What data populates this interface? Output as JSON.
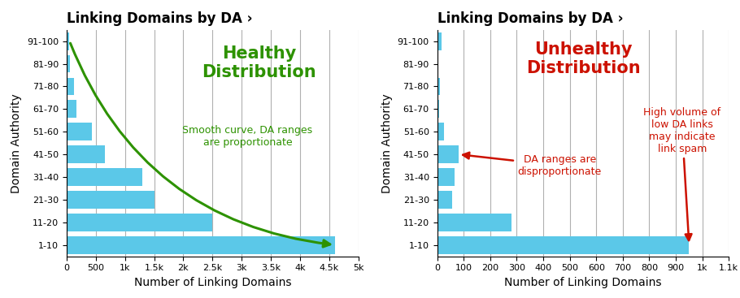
{
  "chart_data": [
    {
      "type": "bar",
      "orientation": "horizontal",
      "title": "Linking Domains by DA ›",
      "xlabel": "Number of Linking Domains",
      "ylabel": "Domain Authority",
      "categories": [
        "1-10",
        "11-20",
        "21-30",
        "31-40",
        "41-50",
        "51-60",
        "61-70",
        "71-80",
        "81-90",
        "91-100"
      ],
      "values": [
        4600,
        2500,
        1500,
        1300,
        650,
        430,
        170,
        120,
        60,
        50
      ],
      "color": "#5bc8e8",
      "xlim": [
        0,
        5000
      ],
      "xticks": [
        0,
        500,
        {
          "value": 1000,
          "label": "1k"
        },
        {
          "value": 1500,
          "label": "1.5k"
        },
        {
          "value": 2000,
          "label": "2k"
        },
        {
          "value": 2500,
          "label": "2.5k"
        },
        {
          "value": 3000,
          "label": "3k"
        },
        {
          "value": 3500,
          "label": "3.5k"
        },
        {
          "value": 4000,
          "label": "4k"
        },
        {
          "value": 4500,
          "label": "4.5k"
        },
        {
          "value": 5000,
          "label": "5k"
        }
      ],
      "grid": true,
      "annotations": [
        {
          "text": "Healthy\nDistribution",
          "color": "#2d9200"
        },
        {
          "text": "Smooth curve, DA ranges\nare proportionate",
          "color": "#2d9200"
        }
      ]
    },
    {
      "type": "bar",
      "orientation": "horizontal",
      "title": "Linking Domains by DA ›",
      "xlabel": "Number of Linking Domains",
      "ylabel": "Domain Authority",
      "categories": [
        "1-10",
        "11-20",
        "21-30",
        "31-40",
        "41-50",
        "51-60",
        "61-70",
        "71-80",
        "81-90",
        "91-100"
      ],
      "values": [
        950,
        280,
        55,
        65,
        80,
        25,
        8,
        12,
        3,
        18
      ],
      "color": "#5bc8e8",
      "xlim": [
        0,
        1100
      ],
      "xticks": [
        0,
        100,
        200,
        300,
        400,
        500,
        600,
        700,
        800,
        900,
        {
          "value": 1000,
          "label": "1k"
        },
        {
          "value": 1100,
          "label": "1.1k"
        }
      ],
      "grid": true,
      "annotations": [
        {
          "text": "Unhealthy\nDistribution",
          "color": "#cc1100"
        },
        {
          "text": "DA ranges are\ndisproportionate",
          "color": "#cc1100"
        },
        {
          "text": "High volume of\nlow DA links\nmay indicate\nlink spam",
          "color": "#cc1100"
        }
      ]
    }
  ]
}
